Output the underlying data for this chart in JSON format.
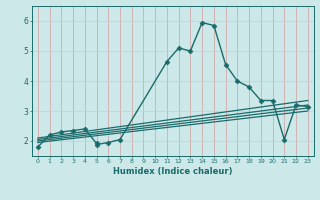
{
  "xlabel": "Humidex (Indice chaleur)",
  "bg_color": "#cde8e8",
  "line_color": "#1a6b6b",
  "vgrid_color": "#d4a0a0",
  "hgrid_color": "#b8d4d4",
  "xlim": [
    -0.5,
    23.5
  ],
  "ylim": [
    1.5,
    6.5
  ],
  "yticks": [
    2,
    3,
    4,
    5,
    6
  ],
  "xticks": [
    0,
    1,
    2,
    3,
    4,
    5,
    6,
    7,
    8,
    9,
    10,
    11,
    12,
    13,
    14,
    15,
    16,
    17,
    18,
    19,
    20,
    21,
    22,
    23
  ],
  "series": [
    {
      "x": [
        0,
        1,
        2,
        3,
        4,
        5,
        5,
        6,
        7,
        11,
        12,
        13,
        14,
        15,
        16,
        17,
        18,
        19,
        20,
        21,
        22,
        23
      ],
      "y": [
        1.8,
        2.2,
        2.3,
        2.35,
        2.4,
        1.92,
        1.88,
        1.95,
        2.05,
        4.65,
        5.1,
        5.0,
        5.95,
        5.85,
        4.55,
        4.0,
        3.8,
        3.35,
        3.35,
        2.05,
        3.2,
        3.15
      ],
      "marker": "D",
      "markersize": 2.5,
      "linewidth": 1.0
    },
    {
      "x": [
        0,
        23
      ],
      "y": [
        2.1,
        3.35
      ],
      "marker": null,
      "linewidth": 0.9
    },
    {
      "x": [
        0,
        23
      ],
      "y": [
        2.05,
        3.2
      ],
      "marker": null,
      "linewidth": 0.9
    },
    {
      "x": [
        0,
        23
      ],
      "y": [
        2.0,
        3.1
      ],
      "marker": null,
      "linewidth": 0.9
    },
    {
      "x": [
        0,
        23
      ],
      "y": [
        1.95,
        3.0
      ],
      "marker": null,
      "linewidth": 0.9
    }
  ]
}
